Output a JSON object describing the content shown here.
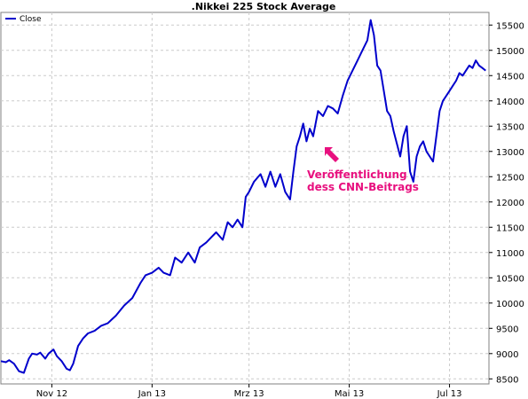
{
  "chart_data": {
    "type": "line",
    "title": ".Nikkei 225 Stock Average",
    "legend": {
      "entries": [
        "Close"
      ],
      "position": "top-left"
    },
    "y_ticks": [
      8500,
      9000,
      9500,
      10000,
      10500,
      11000,
      11500,
      12000,
      12500,
      13000,
      13500,
      14000,
      14500,
      15000,
      15500
    ],
    "y_tick_labels": [
      "8500",
      "9000",
      "9500",
      "10000",
      "10500",
      "11000",
      "11500",
      "12000",
      "12500",
      "13000",
      "13500",
      "14000",
      "14500",
      "15000",
      "15500"
    ],
    "ylim": [
      8400,
      15750
    ],
    "x_ticks": [
      "Nov 12",
      "Jan 13",
      "Mrz 13",
      "Mai 13",
      "Jul 13"
    ],
    "x_tick_dates": [
      "2012-11-01",
      "2013-01-01",
      "2013-03-01",
      "2013-05-01",
      "2013-07-01"
    ],
    "xlim": [
      "2012-10-01",
      "2013-07-25"
    ],
    "grid": true,
    "colors": {
      "line": "#0000cc",
      "annotation": "#e8107f",
      "grid": "#cccccc"
    },
    "series": [
      {
        "name": "Close",
        "x": [
          "2012-10-01",
          "2012-10-04",
          "2012-10-06",
          "2012-10-09",
          "2012-10-12",
          "2012-10-15",
          "2012-10-18",
          "2012-10-20",
          "2012-10-23",
          "2012-10-25",
          "2012-10-28",
          "2012-10-30",
          "2012-11-02",
          "2012-11-04",
          "2012-11-07",
          "2012-11-10",
          "2012-11-12",
          "2012-11-14",
          "2012-11-17",
          "2012-11-20",
          "2012-11-23",
          "2012-11-27",
          "2012-12-01",
          "2012-12-05",
          "2012-12-10",
          "2012-12-15",
          "2012-12-20",
          "2012-12-25",
          "2012-12-28",
          "2013-01-01",
          "2013-01-05",
          "2013-01-08",
          "2013-01-12",
          "2013-01-15",
          "2013-01-19",
          "2013-01-23",
          "2013-01-27",
          "2013-01-30",
          "2013-02-03",
          "2013-02-06",
          "2013-02-09",
          "2013-02-13",
          "2013-02-16",
          "2013-02-19",
          "2013-02-22",
          "2013-02-25",
          "2013-02-27",
          "2013-03-01",
          "2013-03-04",
          "2013-03-08",
          "2013-03-11",
          "2013-03-14",
          "2013-03-17",
          "2013-03-20",
          "2013-03-23",
          "2013-03-26",
          "2013-03-28",
          "2013-03-30",
          "2013-04-01",
          "2013-04-03",
          "2013-04-05",
          "2013-04-07",
          "2013-04-09",
          "2013-04-12",
          "2013-04-15",
          "2013-04-18",
          "2013-04-21",
          "2013-04-24",
          "2013-04-27",
          "2013-04-30",
          "2013-05-03",
          "2013-05-06",
          "2013-05-09",
          "2013-05-12",
          "2013-05-14",
          "2013-05-16",
          "2013-05-18",
          "2013-05-20",
          "2013-05-22",
          "2013-05-24",
          "2013-05-26",
          "2013-05-28",
          "2013-05-30",
          "2013-06-01",
          "2013-06-03",
          "2013-06-05",
          "2013-06-07",
          "2013-06-09",
          "2013-06-11",
          "2013-06-13",
          "2013-06-15",
          "2013-06-17",
          "2013-06-19",
          "2013-06-21",
          "2013-06-23",
          "2013-06-25",
          "2013-06-27",
          "2013-06-29",
          "2013-07-01",
          "2013-07-03",
          "2013-07-05",
          "2013-07-07",
          "2013-07-09",
          "2013-07-11",
          "2013-07-13",
          "2013-07-15",
          "2013-07-17",
          "2013-07-19",
          "2013-07-21",
          "2013-07-23"
        ],
        "y": [
          8850,
          8830,
          8870,
          8800,
          8650,
          8620,
          8900,
          9000,
          8980,
          9020,
          8900,
          9000,
          9080,
          8950,
          8850,
          8700,
          8670,
          8800,
          9150,
          9300,
          9400,
          9450,
          9550,
          9600,
          9750,
          9950,
          10100,
          10400,
          10550,
          10600,
          10700,
          10600,
          10550,
          10900,
          10800,
          11000,
          10800,
          11100,
          11200,
          11300,
          11400,
          11250,
          11600,
          11500,
          11650,
          11500,
          12100,
          12200,
          12400,
          12550,
          12300,
          12600,
          12300,
          12550,
          12200,
          12050,
          12600,
          13100,
          13300,
          13550,
          13200,
          13450,
          13300,
          13800,
          13700,
          13900,
          13850,
          13750,
          14100,
          14400,
          14600,
          14800,
          15000,
          15200,
          15600,
          15300,
          14700,
          14600,
          14200,
          13800,
          13700,
          13400,
          13150,
          12900,
          13300,
          13500,
          12600,
          12400,
          12900,
          13100,
          13200,
          13000,
          12900,
          12800,
          13300,
          13800,
          14000,
          14100,
          14200,
          14300,
          14400,
          14550,
          14500,
          14600,
          14700,
          14650,
          14800,
          14700,
          14650,
          14600
        ]
      }
    ],
    "annotation": {
      "text_lines": [
        "Veröffentlichung",
        "dess CNN-Beitrags"
      ]
    }
  }
}
